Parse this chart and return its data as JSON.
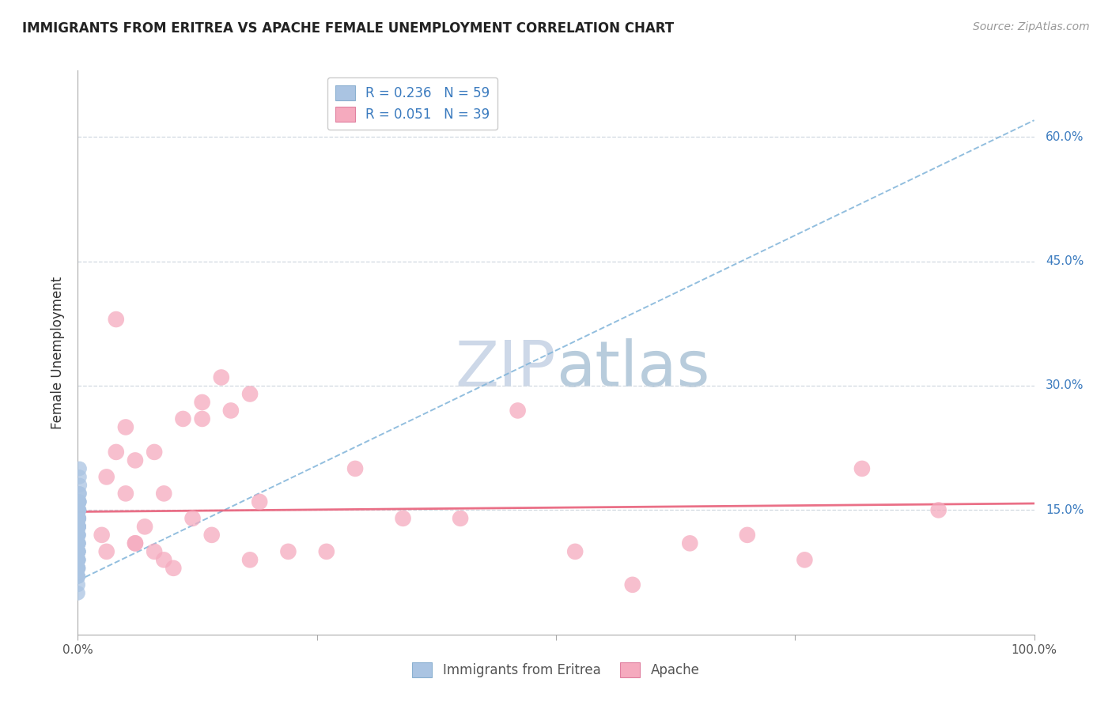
{
  "title": "IMMIGRANTS FROM ERITREA VS APACHE FEMALE UNEMPLOYMENT CORRELATION CHART",
  "source_text": "Source: ZipAtlas.com",
  "ylabel": "Female Unemployment",
  "legend_label_1": "Immigrants from Eritrea",
  "legend_label_2": "Apache",
  "r1": 0.236,
  "n1": 59,
  "r2": 0.051,
  "n2": 39,
  "color_blue": "#aac4e2",
  "color_pink": "#f5aabe",
  "color_blue_line": "#7fb3d9",
  "color_pink_line": "#e8607a",
  "color_blue_label": "#3b7bbf",
  "title_color": "#222222",
  "watermark_color": "#cdd8e8",
  "xlim": [
    0.0,
    1.0
  ],
  "ylim": [
    0.0,
    0.68
  ],
  "yticks": [
    0.15,
    0.3,
    0.45,
    0.6
  ],
  "ytick_labels": [
    "15.0%",
    "30.0%",
    "45.0%",
    "60.0%"
  ],
  "background_color": "#ffffff",
  "grid_color": "#d0d8e0",
  "blue_x": [
    0.0002,
    0.0004,
    0.0003,
    0.0008,
    0.0005,
    0.0002,
    0.001,
    0.0006,
    0.0004,
    0.0002,
    0.0012,
    0.0005,
    0.0003,
    0.0007,
    0.0015,
    0.0004,
    0.0002,
    0.0009,
    0.0006,
    0.0004,
    0.0003,
    0.0011,
    0.0007,
    0.0005,
    0.0018,
    0.0006,
    0.0004,
    0.0002,
    0.001,
    0.0014,
    0.0005,
    0.0007,
    0.0002,
    0.0012,
    0.002,
    0.0004,
    0.0007,
    0.0009,
    0.0002,
    0.0014,
    0.0005,
    0.0007,
    0.0002,
    0.0009,
    0.0017,
    0.0004,
    0.0007,
    0.0013,
    0.0002,
    0.0004,
    0.001,
    0.0006,
    0.0015,
    0.0004,
    0.0001,
    0.0007,
    0.0012,
    0.0018,
    0.0005
  ],
  "blue_y": [
    0.11,
    0.14,
    0.1,
    0.13,
    0.15,
    0.09,
    0.13,
    0.12,
    0.08,
    0.12,
    0.14,
    0.09,
    0.11,
    0.1,
    0.16,
    0.11,
    0.07,
    0.13,
    0.09,
    0.12,
    0.1,
    0.15,
    0.11,
    0.08,
    0.17,
    0.1,
    0.12,
    0.09,
    0.14,
    0.16,
    0.11,
    0.13,
    0.07,
    0.15,
    0.18,
    0.1,
    0.12,
    0.14,
    0.08,
    0.17,
    0.09,
    0.11,
    0.06,
    0.13,
    0.19,
    0.1,
    0.12,
    0.15,
    0.07,
    0.09,
    0.14,
    0.11,
    0.16,
    0.08,
    0.05,
    0.1,
    0.16,
    0.2,
    0.09
  ],
  "pink_x": [
    0.025,
    0.04,
    0.06,
    0.08,
    0.1,
    0.05,
    0.03,
    0.13,
    0.07,
    0.04,
    0.16,
    0.06,
    0.09,
    0.12,
    0.18,
    0.03,
    0.15,
    0.05,
    0.22,
    0.08,
    0.26,
    0.11,
    0.19,
    0.29,
    0.13,
    0.06,
    0.34,
    0.09,
    0.4,
    0.14,
    0.46,
    0.18,
    0.52,
    0.58,
    0.64,
    0.7,
    0.76,
    0.82,
    0.9
  ],
  "pink_y": [
    0.12,
    0.38,
    0.21,
    0.1,
    0.08,
    0.25,
    0.19,
    0.28,
    0.13,
    0.22,
    0.27,
    0.11,
    0.09,
    0.14,
    0.29,
    0.1,
    0.31,
    0.17,
    0.1,
    0.22,
    0.1,
    0.26,
    0.16,
    0.2,
    0.26,
    0.11,
    0.14,
    0.17,
    0.14,
    0.12,
    0.27,
    0.09,
    0.1,
    0.06,
    0.11,
    0.12,
    0.09,
    0.2,
    0.15
  ],
  "blue_trend_x": [
    0.0,
    1.0
  ],
  "blue_trend_y": [
    0.065,
    0.62
  ],
  "pink_trend_x": [
    0.0,
    1.0
  ],
  "pink_trend_y": [
    0.148,
    0.158
  ]
}
